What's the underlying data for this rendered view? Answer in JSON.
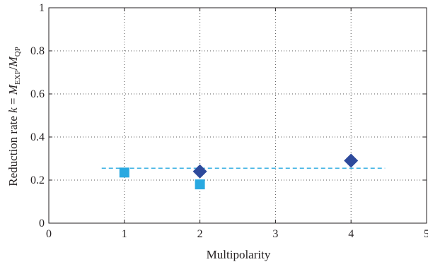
{
  "chart_data": {
    "type": "scatter",
    "title": "",
    "xlabel": "Multipolarity",
    "ylabel": {
      "prefix": "Reduction rate ",
      "k": "k",
      "equals": " = ",
      "M": "M",
      "sub_exp": "EXP",
      "slash": "/",
      "sub_qp": "QP"
    },
    "xlim": [
      0,
      5
    ],
    "ylim": [
      0,
      1
    ],
    "x_ticks": [
      0,
      1,
      2,
      3,
      4,
      5
    ],
    "y_ticks": [
      0,
      0.2,
      0.4,
      0.6,
      0.8,
      1
    ],
    "x_tick_labels": [
      "0",
      "1",
      "2",
      "3",
      "4",
      "5"
    ],
    "y_tick_labels": [
      "0",
      "0.2",
      "0.4",
      "0.6",
      "0.8",
      "1"
    ],
    "grid": "dotted",
    "series": [
      {
        "marker": "square",
        "color": "#29a9e1",
        "points": [
          {
            "x": 1,
            "y": 0.235
          },
          {
            "x": 2,
            "y": 0.18
          }
        ]
      },
      {
        "marker": "diamond",
        "color": "#2e4a9c",
        "points": [
          {
            "x": 2,
            "y": 0.24
          },
          {
            "x": 4,
            "y": 0.29
          }
        ]
      }
    ],
    "reference_line": {
      "y": 0.255,
      "x_start": 0.7,
      "x_end": 4.45,
      "style": "dashed",
      "color": "#29a9e1"
    }
  }
}
